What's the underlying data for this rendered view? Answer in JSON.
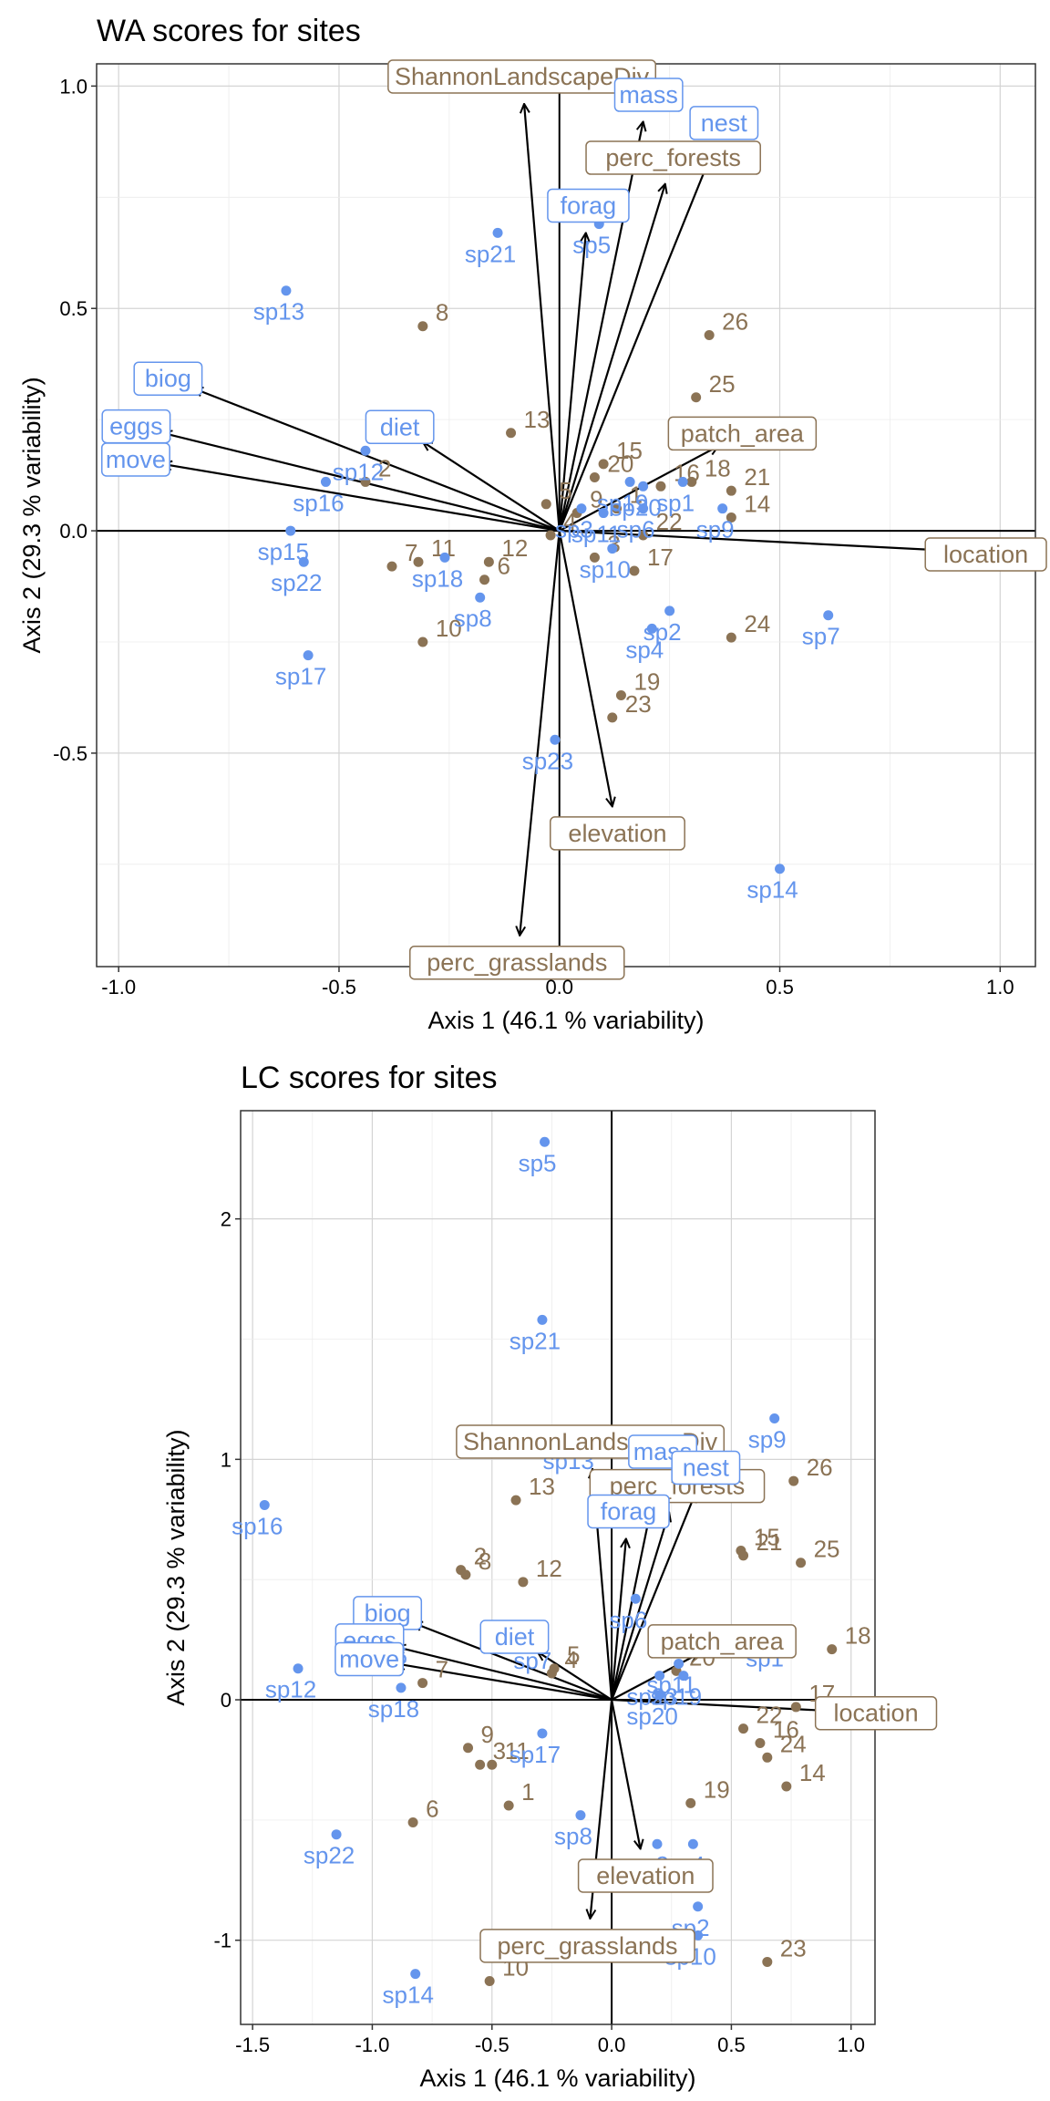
{
  "chart_data": [
    {
      "type": "scatter",
      "title": "WA scores for sites",
      "xlabel": "Axis 1 (46.1 % variability)",
      "ylabel": "Axis 2 (29.3 % variability)",
      "xlim": [
        -1.05,
        1.08
      ],
      "ylim": [
        -0.98,
        1.05
      ],
      "xticks": [
        -1.0,
        -0.5,
        0.0,
        0.5,
        1.0
      ],
      "xtick_labels": [
        "-1.0",
        "-0.5",
        "0.0",
        "0.5",
        "1.0"
      ],
      "yticks": [
        -0.5,
        0.0,
        0.5,
        1.0
      ],
      "ytick_labels": [
        "-0.5",
        "0.0",
        "0.5",
        "1.0"
      ],
      "grid": true,
      "colors": {
        "sites": "#8B7355",
        "species": "#6495ED",
        "arrows": "#000000"
      },
      "sites": [
        {
          "label": "1",
          "x": 0.13,
          "y": 0.05
        },
        {
          "label": "2",
          "x": -0.44,
          "y": 0.11
        },
        {
          "label": "3",
          "x": 0.08,
          "y": -0.06
        },
        {
          "label": "4",
          "x": -0.02,
          "y": -0.01
        },
        {
          "label": "5",
          "x": -0.03,
          "y": 0.06
        },
        {
          "label": "6",
          "x": -0.17,
          "y": -0.11
        },
        {
          "label": "7",
          "x": -0.38,
          "y": -0.08
        },
        {
          "label": "8",
          "x": -0.31,
          "y": 0.46
        },
        {
          "label": "9",
          "x": 0.04,
          "y": 0.04
        },
        {
          "label": "10",
          "x": -0.31,
          "y": -0.25
        },
        {
          "label": "11",
          "x": -0.32,
          "y": -0.07
        },
        {
          "label": "12",
          "x": -0.16,
          "y": -0.07
        },
        {
          "label": "13",
          "x": -0.11,
          "y": 0.22
        },
        {
          "label": "14",
          "x": 0.39,
          "y": 0.03
        },
        {
          "label": "15",
          "x": 0.1,
          "y": 0.15
        },
        {
          "label": "16",
          "x": 0.23,
          "y": 0.1
        },
        {
          "label": "17",
          "x": 0.17,
          "y": -0.09
        },
        {
          "label": "18",
          "x": 0.3,
          "y": 0.11
        },
        {
          "label": "19",
          "x": 0.14,
          "y": -0.37
        },
        {
          "label": "20",
          "x": 0.08,
          "y": 0.12
        },
        {
          "label": "21",
          "x": 0.39,
          "y": 0.09
        },
        {
          "label": "22",
          "x": 0.19,
          "y": -0.01
        },
        {
          "label": "23",
          "x": 0.12,
          "y": -0.42
        },
        {
          "label": "24",
          "x": 0.39,
          "y": -0.24
        },
        {
          "label": "25",
          "x": 0.31,
          "y": 0.3
        },
        {
          "label": "26",
          "x": 0.34,
          "y": 0.44
        }
      ],
      "species": [
        {
          "label": "sp1",
          "x": 0.28,
          "y": 0.11
        },
        {
          "label": "sp2",
          "x": 0.25,
          "y": -0.18
        },
        {
          "label": "sp3",
          "x": 0.05,
          "y": 0.05
        },
        {
          "label": "sp4",
          "x": 0.21,
          "y": -0.22
        },
        {
          "label": "sp5",
          "x": 0.09,
          "y": 0.69
        },
        {
          "label": "sp6",
          "x": 0.19,
          "y": 0.05
        },
        {
          "label": "sp7",
          "x": 0.61,
          "y": -0.19
        },
        {
          "label": "sp8",
          "x": -0.18,
          "y": -0.15
        },
        {
          "label": "sp9",
          "x": 0.37,
          "y": 0.05
        },
        {
          "label": "sp10",
          "x": 0.12,
          "y": -0.04
        },
        {
          "label": "sp11",
          "x": 0.1,
          "y": 0.04
        },
        {
          "label": "sp12",
          "x": -0.44,
          "y": 0.18
        },
        {
          "label": "sp13",
          "x": -0.62,
          "y": 0.54
        },
        {
          "label": "sp14",
          "x": 0.5,
          "y": -0.76
        },
        {
          "label": "sp15",
          "x": -0.61,
          "y": 0.0
        },
        {
          "label": "sp16",
          "x": -0.53,
          "y": 0.11
        },
        {
          "label": "sp17",
          "x": -0.57,
          "y": -0.28
        },
        {
          "label": "sp18",
          "x": -0.26,
          "y": -0.06
        },
        {
          "label": "sp19",
          "x": 0.16,
          "y": 0.11
        },
        {
          "label": "sp20",
          "x": 0.19,
          "y": 0.1
        },
        {
          "label": "sp21",
          "x": -0.14,
          "y": 0.67
        },
        {
          "label": "sp22",
          "x": -0.58,
          "y": -0.07
        },
        {
          "label": "sp23",
          "x": -0.01,
          "y": -0.47
        }
      ],
      "env_vectors": [
        {
          "label": "ShannonLandscapeDiv",
          "x": -0.08,
          "y": 0.96
        },
        {
          "label": "perc_forests",
          "x": 0.24,
          "y": 0.78
        },
        {
          "label": "patch_area",
          "x": 0.36,
          "y": 0.19
        },
        {
          "label": "location",
          "x": 0.99,
          "y": -0.05
        },
        {
          "label": "elevation",
          "x": 0.12,
          "y": -0.62
        },
        {
          "label": "perc_grasslands",
          "x": -0.09,
          "y": -0.91
        }
      ],
      "trait_vectors": [
        {
          "label": "mass",
          "x": 0.19,
          "y": 0.92
        },
        {
          "label": "nest",
          "x": 0.35,
          "y": 0.86
        },
        {
          "label": "forag",
          "x": 0.06,
          "y": 0.67
        },
        {
          "label": "biog",
          "x": -0.83,
          "y": 0.32
        },
        {
          "label": "eggs",
          "x": -0.9,
          "y": 0.22
        },
        {
          "label": "move",
          "x": -0.9,
          "y": 0.15
        },
        {
          "label": "diet",
          "x": -0.31,
          "y": 0.2
        }
      ]
    },
    {
      "type": "scatter",
      "title": "LC scores for sites",
      "xlabel": "Axis 1 (46.1 % variability)",
      "ylabel": "Axis 2 (29.3 % variability)",
      "xlim": [
        -1.55,
        1.1
      ],
      "ylim": [
        -1.35,
        2.45
      ],
      "xticks": [
        -1.5,
        -1.0,
        -0.5,
        0.0,
        0.5,
        1.0
      ],
      "xtick_labels": [
        "-1.5",
        "-1.0",
        "-0.5",
        "0.0",
        "0.5",
        "1.0"
      ],
      "yticks": [
        -1,
        0,
        1,
        2
      ],
      "ytick_labels": [
        "-1",
        "0",
        "1",
        "2"
      ],
      "grid": true,
      "colors": {
        "sites": "#8B7355",
        "species": "#6495ED",
        "arrows": "#000000"
      },
      "sites": [
        {
          "label": "1",
          "x": -0.43,
          "y": -0.44
        },
        {
          "label": "2",
          "x": -0.63,
          "y": 0.54
        },
        {
          "label": "3",
          "x": -0.55,
          "y": -0.27
        },
        {
          "label": "4",
          "x": -0.25,
          "y": 0.11
        },
        {
          "label": "5",
          "x": -0.24,
          "y": 0.13
        },
        {
          "label": "6",
          "x": -0.83,
          "y": -0.51
        },
        {
          "label": "7",
          "x": -0.79,
          "y": 0.07
        },
        {
          "label": "8",
          "x": -0.61,
          "y": 0.52
        },
        {
          "label": "9",
          "x": -0.6,
          "y": -0.2
        },
        {
          "label": "10",
          "x": -0.51,
          "y": -1.17
        },
        {
          "label": "11",
          "x": -0.5,
          "y": -0.27
        },
        {
          "label": "12",
          "x": -0.37,
          "y": 0.49
        },
        {
          "label": "13",
          "x": -0.4,
          "y": 0.83
        },
        {
          "label": "14",
          "x": 0.73,
          "y": -0.36
        },
        {
          "label": "15",
          "x": 0.54,
          "y": 0.62
        },
        {
          "label": "16",
          "x": 0.62,
          "y": -0.18
        },
        {
          "label": "17",
          "x": 0.77,
          "y": -0.03
        },
        {
          "label": "18",
          "x": 0.92,
          "y": 0.21
        },
        {
          "label": "19",
          "x": 0.33,
          "y": -0.43
        },
        {
          "label": "20",
          "x": 0.27,
          "y": 0.12
        },
        {
          "label": "21",
          "x": 0.55,
          "y": 0.6
        },
        {
          "label": "22",
          "x": 0.55,
          "y": -0.12
        },
        {
          "label": "23",
          "x": 0.65,
          "y": -1.09
        },
        {
          "label": "24",
          "x": 0.65,
          "y": -0.24
        },
        {
          "label": "25",
          "x": 0.79,
          "y": 0.57
        },
        {
          "label": "26",
          "x": 0.76,
          "y": 0.91
        }
      ],
      "species": [
        {
          "label": "sp1",
          "x": 0.67,
          "y": 0.26
        },
        {
          "label": "sp2",
          "x": 0.36,
          "y": -0.86
        },
        {
          "label": "sp3",
          "x": 0.19,
          "y": -0.6
        },
        {
          "label": "sp4",
          "x": 0.34,
          "y": -0.6
        },
        {
          "label": "sp5",
          "x": -0.28,
          "y": 2.32
        },
        {
          "label": "sp6",
          "x": 0.1,
          "y": 0.42
        },
        {
          "label": "sp7",
          "x": -0.3,
          "y": 0.25
        },
        {
          "label": "sp8",
          "x": -0.13,
          "y": -0.48
        },
        {
          "label": "sp9",
          "x": 0.68,
          "y": 1.17
        },
        {
          "label": "sp10",
          "x": 0.36,
          "y": -0.98
        },
        {
          "label": "sp11",
          "x": 0.28,
          "y": 0.15
        },
        {
          "label": "sp12",
          "x": -1.31,
          "y": 0.13
        },
        {
          "label": "sp13",
          "x": -0.15,
          "y": 1.08
        },
        {
          "label": "sp14",
          "x": -0.82,
          "y": -1.14
        },
        {
          "label": "sp15",
          "x": -0.93,
          "y": 0.27
        },
        {
          "label": "sp16",
          "x": -1.45,
          "y": 0.81
        },
        {
          "label": "sp17",
          "x": -0.29,
          "y": -0.14
        },
        {
          "label": "sp18",
          "x": -0.88,
          "y": 0.05
        },
        {
          "label": "sp19",
          "x": 0.3,
          "y": 0.1
        },
        {
          "label": "sp20",
          "x": 0.2,
          "y": 0.02
        },
        {
          "label": "sp21",
          "x": -0.29,
          "y": 1.58
        },
        {
          "label": "sp22",
          "x": -1.15,
          "y": -0.56
        },
        {
          "label": "sp23",
          "x": 0.2,
          "y": 0.1
        }
      ],
      "env_vectors": [
        {
          "label": "ShannonLandscapeDiv",
          "x": -0.08,
          "y": 0.96
        },
        {
          "label": "perc_forests",
          "x": 0.24,
          "y": 0.78
        },
        {
          "label": "patch_area",
          "x": 0.36,
          "y": 0.19
        },
        {
          "label": "location",
          "x": 0.99,
          "y": -0.05
        },
        {
          "label": "elevation",
          "x": 0.12,
          "y": -0.62
        },
        {
          "label": "perc_grasslands",
          "x": -0.09,
          "y": -0.91
        }
      ],
      "trait_vectors": [
        {
          "label": "mass",
          "x": 0.19,
          "y": 0.92
        },
        {
          "label": "nest",
          "x": 0.35,
          "y": 0.86
        },
        {
          "label": "forag",
          "x": 0.06,
          "y": 0.67
        },
        {
          "label": "biog",
          "x": -0.83,
          "y": 0.32
        },
        {
          "label": "eggs",
          "x": -0.9,
          "y": 0.22
        },
        {
          "label": "move",
          "x": -0.9,
          "y": 0.15
        },
        {
          "label": "diet",
          "x": -0.31,
          "y": 0.2
        }
      ]
    }
  ]
}
